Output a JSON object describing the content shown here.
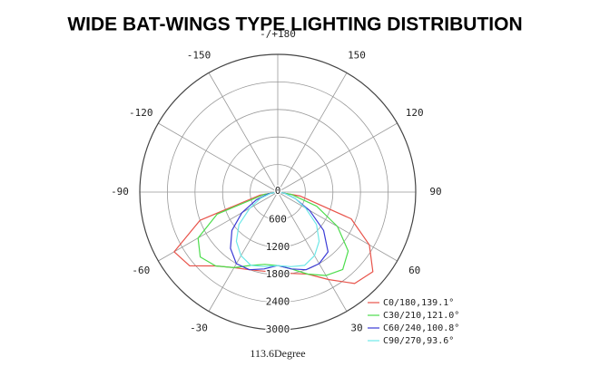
{
  "chart_data": {
    "type": "polar",
    "title": "WIDE BAT-WINGS TYPE LIGHTING DISTRIBUTION",
    "annotation": "113.6Degree",
    "x": [
      -90,
      -80,
      -70,
      -60,
      -50,
      -40,
      -30,
      -20,
      -10,
      0,
      10,
      20,
      30,
      40,
      50,
      60,
      70,
      80,
      90
    ],
    "xticks": [
      -150,
      -120,
      -90,
      -60,
      -30,
      30,
      60,
      90,
      120,
      150,
      {
        "value": 180,
        "label": "-/+180"
      }
    ],
    "ylim": [
      0,
      3000
    ],
    "yticks": [
      0,
      600,
      1200,
      1800,
      2400,
      3000
    ],
    "grid": true,
    "legend": "lower right",
    "series": [
      {
        "name": "C0/180,139.1°",
        "color": "#e8534a",
        "values": [
          0,
          400,
          1800,
          2600,
          2500,
          2100,
          1900,
          1800,
          1750,
          1750,
          1800,
          1900,
          2200,
          2600,
          2700,
          2300,
          1700,
          500,
          0
        ]
      },
      {
        "name": "C30/210,121.0°",
        "color": "#4cdd4c",
        "values": [
          0,
          300,
          1400,
          2000,
          2200,
          2100,
          1900,
          1700,
          1600,
          1600,
          1700,
          1900,
          2100,
          2200,
          2000,
          1500,
          900,
          300,
          0
        ]
      },
      {
        "name": "C60/240,100.8°",
        "color": "#3b3bd6",
        "values": [
          0,
          200,
          500,
          900,
          1300,
          1600,
          1800,
          1800,
          1700,
          1600,
          1700,
          1800,
          1800,
          1700,
          1300,
          800,
          400,
          150,
          0
        ]
      },
      {
        "name": "C90/270,93.6°",
        "color": "#6ee8e8",
        "values": [
          0,
          150,
          400,
          700,
          1100,
          1400,
          1600,
          1700,
          1650,
          1600,
          1650,
          1700,
          1600,
          1400,
          1100,
          700,
          400,
          150,
          0
        ]
      }
    ]
  }
}
